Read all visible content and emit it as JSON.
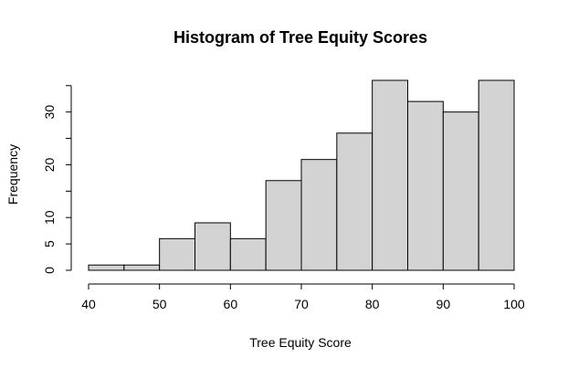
{
  "chart_data": {
    "type": "bar",
    "title": "Histogram of Tree Equity Scores",
    "xlabel": "Tree Equity Score",
    "ylabel": "Frequency",
    "bins": [
      {
        "start": 40,
        "end": 45,
        "count": 1
      },
      {
        "start": 45,
        "end": 50,
        "count": 1
      },
      {
        "start": 50,
        "end": 55,
        "count": 6
      },
      {
        "start": 55,
        "end": 60,
        "count": 9
      },
      {
        "start": 60,
        "end": 65,
        "count": 6
      },
      {
        "start": 65,
        "end": 70,
        "count": 17
      },
      {
        "start": 70,
        "end": 75,
        "count": 21
      },
      {
        "start": 75,
        "end": 80,
        "count": 26
      },
      {
        "start": 80,
        "end": 85,
        "count": 36
      },
      {
        "start": 85,
        "end": 90,
        "count": 32
      },
      {
        "start": 90,
        "end": 95,
        "count": 30
      },
      {
        "start": 95,
        "end": 100,
        "count": 36
      }
    ],
    "xlim": [
      40,
      100
    ],
    "ylim": [
      0,
      36
    ],
    "x_ticks": [
      40,
      50,
      60,
      70,
      80,
      90,
      100
    ],
    "y_ticks": [
      0,
      5,
      10,
      20,
      30
    ],
    "y_minor_ticks": [
      15,
      25,
      35
    ],
    "bar_color": "#d3d3d3",
    "edge_color": "#000000",
    "grid": false
  }
}
